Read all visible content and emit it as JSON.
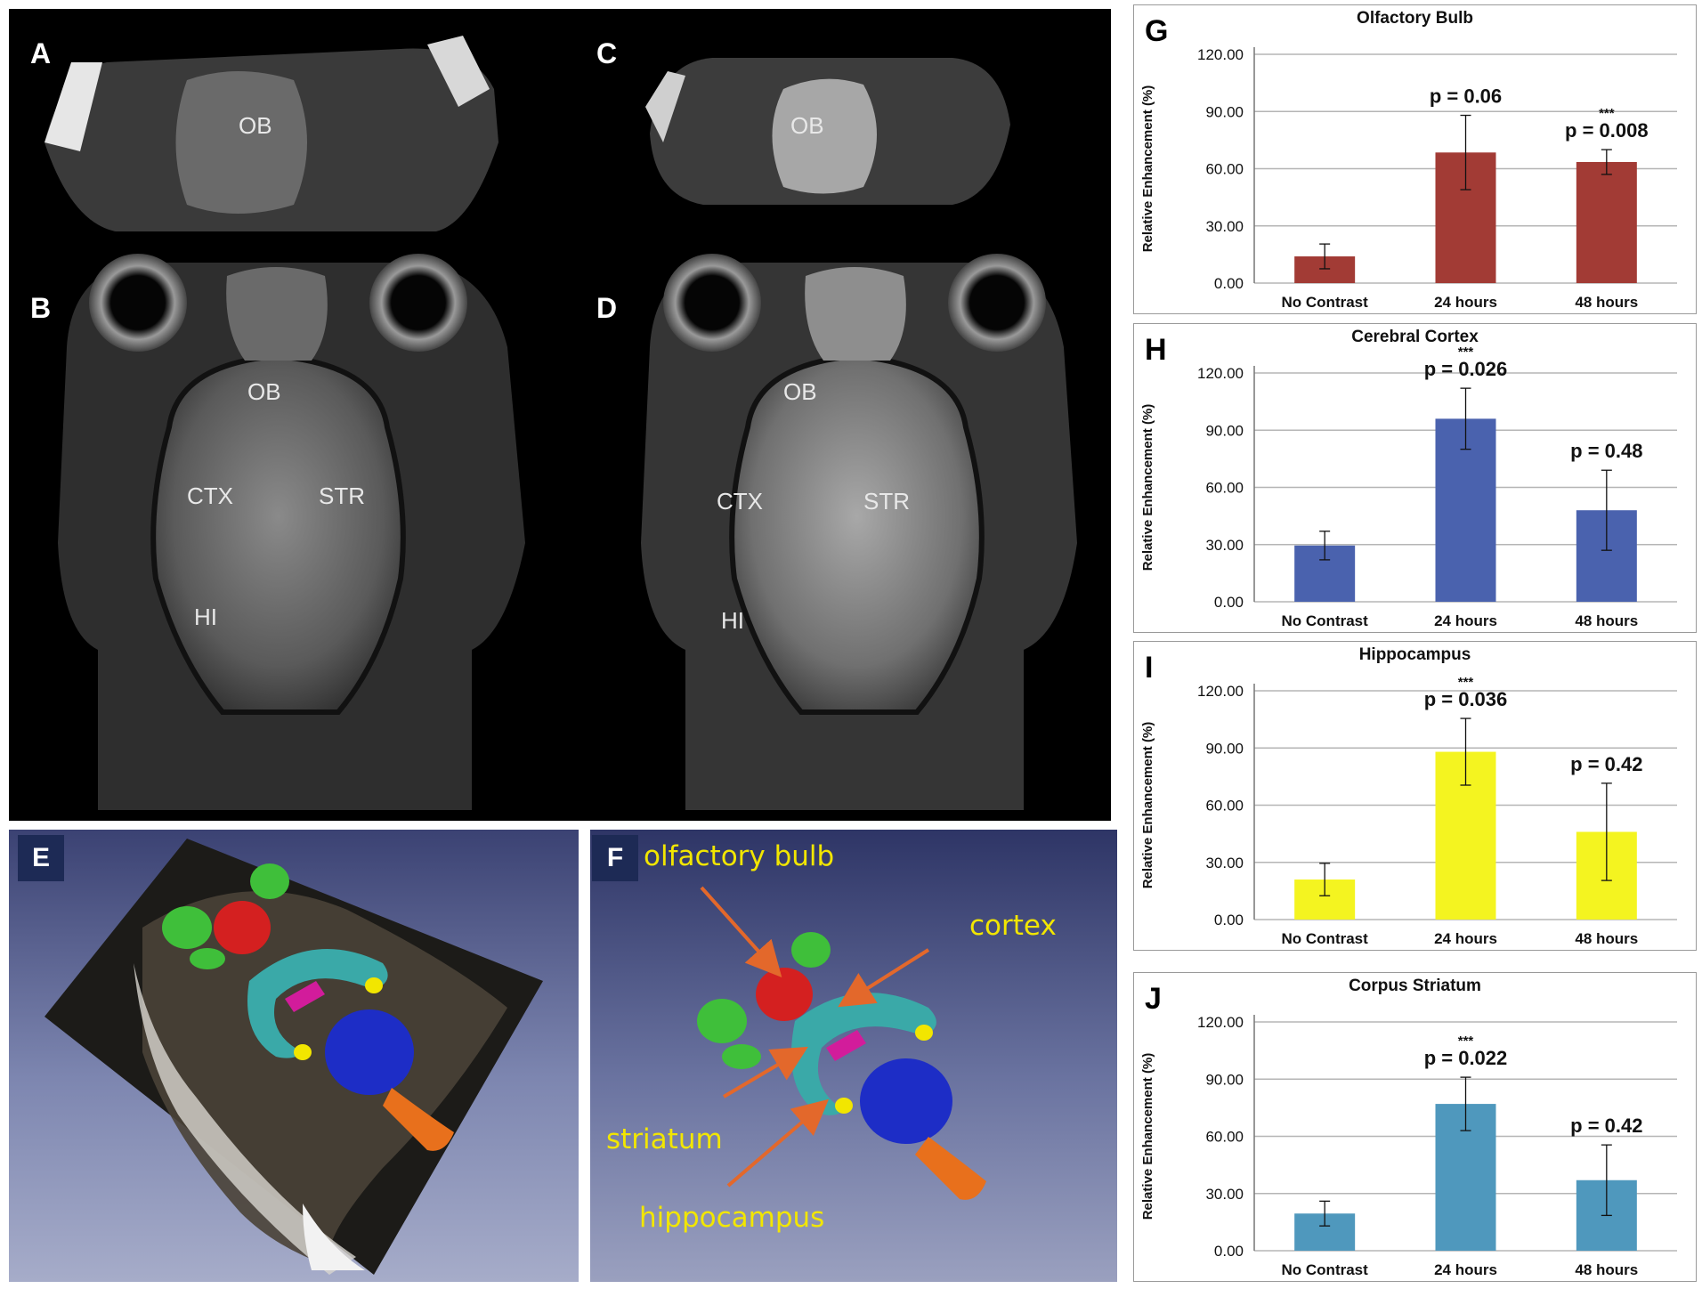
{
  "mri": {
    "letters": [
      "A",
      "B",
      "C",
      "D"
    ],
    "a_labels": [
      "OB"
    ],
    "b_labels": [
      "OB",
      "CTX",
      "STR",
      "HI"
    ],
    "c_labels": [
      "OB"
    ],
    "d_labels": [
      "OB",
      "CTX",
      "STR",
      "HI"
    ]
  },
  "render3d": {
    "letters": [
      "E",
      "F"
    ],
    "f_labels": {
      "olfactory": "olfactory bulb",
      "cortex": "cortex",
      "striatum": "striatum",
      "hippocampus": "hippocampus"
    }
  },
  "colors": {
    "olfactory_bar": "#a23b35",
    "cortex_bar": "#4a62ae",
    "hippocampus_bar": "#f4f420",
    "striatum_bar": "#4f98bd",
    "mri_background": "#000000",
    "render_background": "#3a4170"
  },
  "chart_data": [
    {
      "type": "bar",
      "letter": "G",
      "title": "Olfactory Bulb",
      "ylabel": "Relative Enhancement (%)",
      "categories": [
        "No Contrast",
        "24 hours",
        "48 hours"
      ],
      "values": [
        14,
        68.5,
        63.5
      ],
      "errors": [
        6.5,
        19.5,
        6.5
      ],
      "ylim": [
        0,
        120
      ],
      "yticks": [
        "0.00",
        "30.00",
        "60.00",
        "90.00",
        "120.00"
      ],
      "annotations": [
        "",
        "p = 0.06",
        "p = 0.008"
      ],
      "stars": [
        "",
        "",
        "***"
      ],
      "color": "#a23b35",
      "grid": true
    },
    {
      "type": "bar",
      "letter": "H",
      "title": "Cerebral Cortex",
      "ylabel": "Relative Enhancement (%)",
      "categories": [
        "No Contrast",
        "24 hours",
        "48 hours"
      ],
      "values": [
        29.5,
        96,
        48
      ],
      "errors": [
        7.5,
        16,
        21
      ],
      "ylim": [
        0,
        120
      ],
      "yticks": [
        "0.00",
        "30.00",
        "60.00",
        "90.00",
        "120.00"
      ],
      "annotations": [
        "",
        "p = 0.026",
        "p = 0.48"
      ],
      "stars": [
        "",
        "***",
        ""
      ],
      "color": "#4a62ae",
      "grid": true
    },
    {
      "type": "bar",
      "letter": "I",
      "title": "Hippocampus",
      "ylabel": "Relative Enhancement (%)",
      "categories": [
        "No Contrast",
        "24 hours",
        "48 hours"
      ],
      "values": [
        21,
        88,
        46
      ],
      "errors": [
        8.5,
        17.5,
        25.5
      ],
      "ylim": [
        0,
        120
      ],
      "yticks": [
        "0.00",
        "30.00",
        "60.00",
        "90.00",
        "120.00"
      ],
      "annotations": [
        "",
        "p = 0.036",
        "p = 0.42"
      ],
      "stars": [
        "",
        "***",
        ""
      ],
      "color": "#f4f420",
      "grid": true
    },
    {
      "type": "bar",
      "letter": "J",
      "title": "Corpus Striatum",
      "ylabel": "Relative Enhancement (%)",
      "categories": [
        "No Contrast",
        "24 hours",
        "48 hours"
      ],
      "values": [
        19.5,
        77,
        37
      ],
      "errors": [
        6.5,
        14,
        18.5
      ],
      "ylim": [
        0,
        120
      ],
      "yticks": [
        "0.00",
        "30.00",
        "60.00",
        "90.00",
        "120.00"
      ],
      "annotations": [
        "",
        "p = 0.022",
        "p = 0.42"
      ],
      "stars": [
        "",
        "***",
        ""
      ],
      "color": "#4f98bd",
      "grid": true
    }
  ]
}
